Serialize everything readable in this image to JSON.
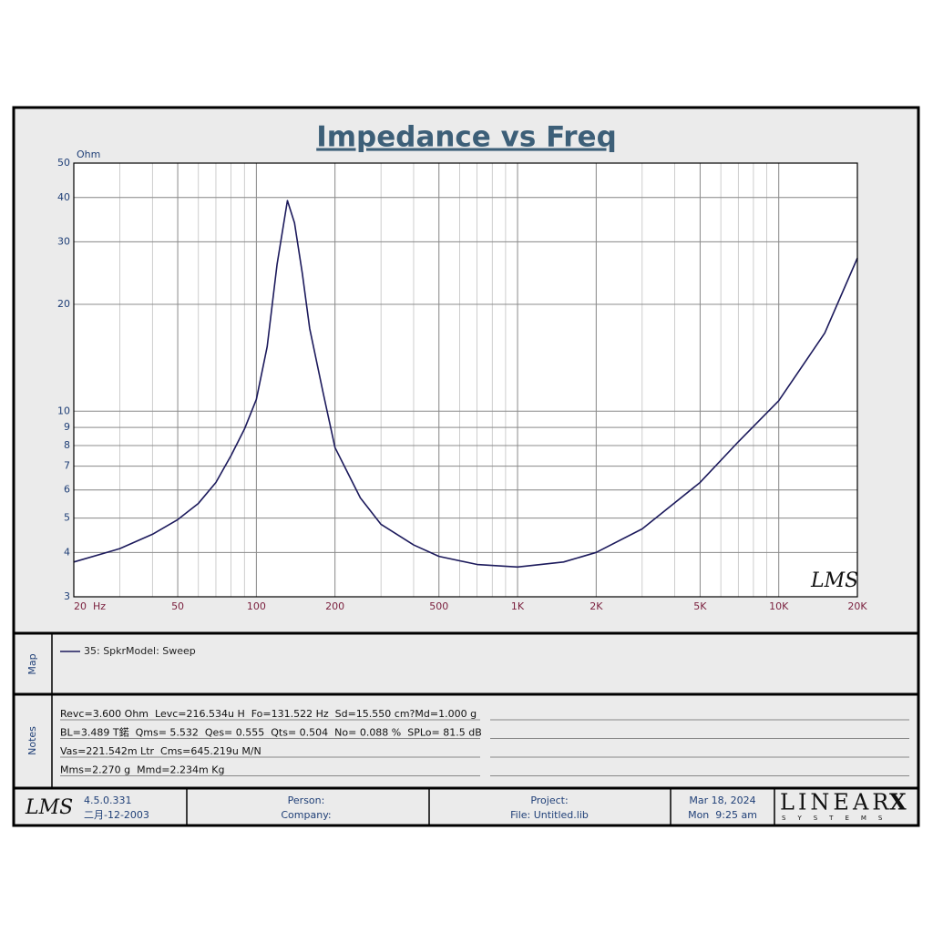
{
  "chart_data": {
    "type": "line",
    "title": "Impedance vs Freq",
    "y_label": "Ohm",
    "x_scale": "log",
    "y_scale": "log",
    "xlim": [
      20,
      20000
    ],
    "ylim": [
      3,
      50
    ],
    "xticks": [
      {
        "value": 20,
        "label": "20  Hz"
      },
      50,
      100,
      200,
      500,
      {
        "value": 1000,
        "label": "1K"
      },
      {
        "value": 2000,
        "label": "2K"
      },
      {
        "value": 5000,
        "label": "5K"
      },
      {
        "value": 10000,
        "label": "10K"
      },
      {
        "value": 20000,
        "label": "20K"
      }
    ],
    "yticks": [
      3,
      4,
      5,
      6,
      7,
      8,
      9,
      10,
      20,
      30,
      40,
      50
    ],
    "grid": true,
    "annotation": "LMS",
    "x": [
      20,
      30,
      40,
      50,
      60,
      70,
      80,
      90,
      100,
      110,
      120,
      131.5,
      140,
      150,
      160,
      180,
      200,
      250,
      300,
      400,
      500,
      700,
      1000,
      1500,
      2000,
      3000,
      5000,
      7000,
      10000,
      15000,
      20000
    ],
    "series": [
      {
        "name": "35: SpkrModel: Sweep",
        "color": "#1c1a5c",
        "values": [
          3.76,
          4.1,
          4.5,
          4.95,
          5.5,
          6.3,
          7.5,
          8.9,
          10.8,
          15.2,
          25.9,
          39.2,
          33.9,
          24.4,
          17.1,
          11.3,
          7.9,
          5.7,
          4.8,
          4.2,
          3.9,
          3.7,
          3.64,
          3.76,
          4.0,
          4.66,
          6.3,
          8.2,
          10.7,
          16.6,
          27.0
        ]
      }
    ]
  },
  "panels": {
    "map_label": "Map",
    "notes_label": "Notes",
    "notes": [
      "Revc=3.600 Ohm  Levc=216.534u H  Fo=131.522 Hz  Sd=15.550 cm?Md=1.000 g",
      "BL=3.489 T鍩  Qms= 5.532  Qes= 0.555  Qts= 0.504  No= 0.088 %  SPLo= 81.5 dB",
      "Vas=221.542m Ltr  Cms=645.219u M/N",
      "Mms=2.270 g  Mmd=2.234m Kg"
    ]
  },
  "footer": {
    "logo": "LMS",
    "version": "4.5.0.331",
    "build_date": "二月-12-2003",
    "person": "Person:",
    "company": "Company:",
    "project": "Project:",
    "file": "File: Untitled.lib",
    "date": "Mar 18, 2024",
    "time": "Mon  9:25 am",
    "brand": "LINEAR",
    "brand_x": "X",
    "brand_sub": "SYSTEMS"
  }
}
